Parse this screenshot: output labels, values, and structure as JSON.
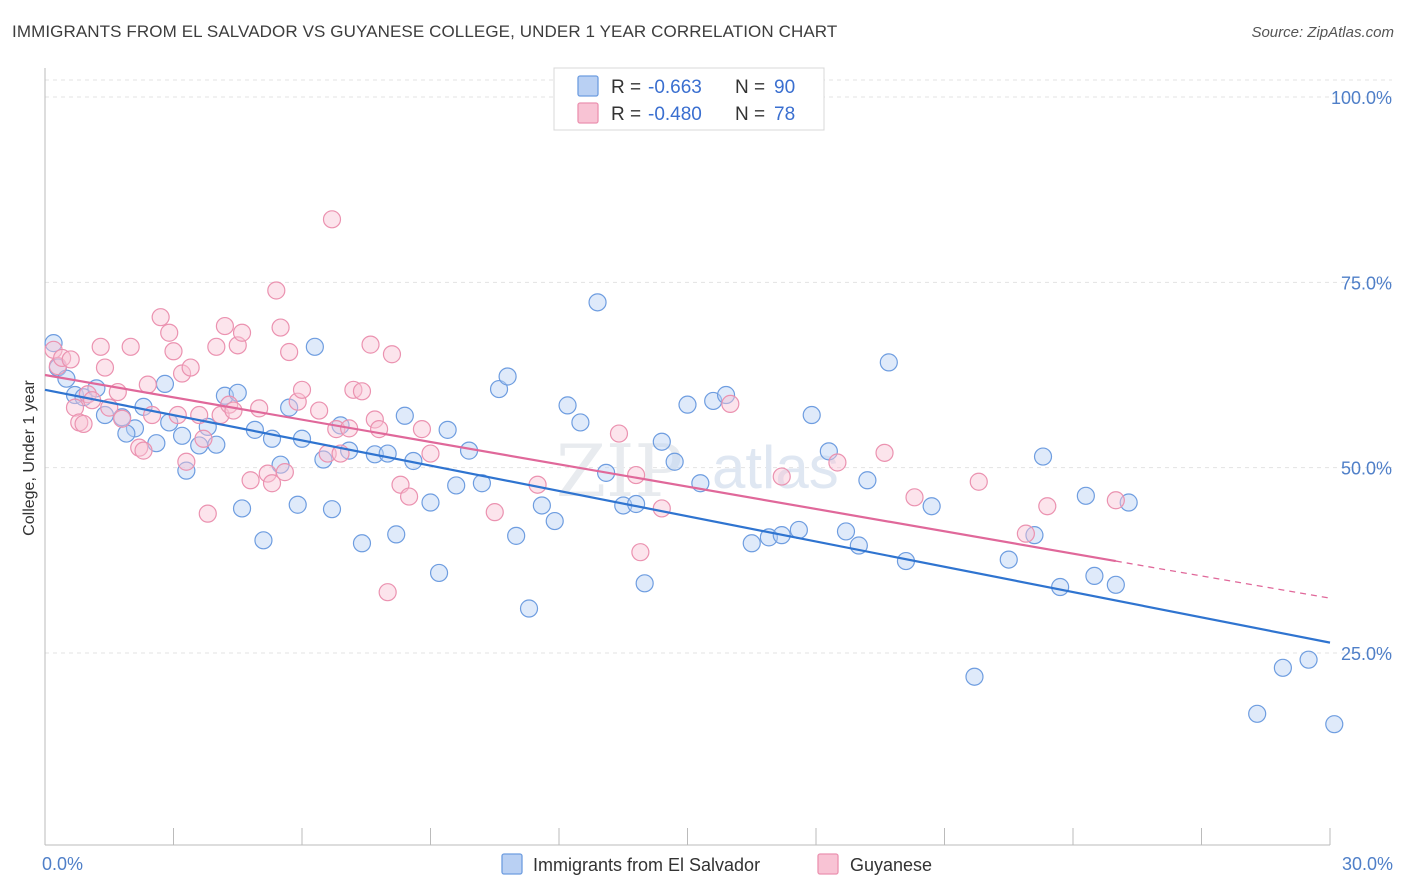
{
  "title": "IMMIGRANTS FROM EL SALVADOR VS GUYANESE COLLEGE, UNDER 1 YEAR CORRELATION CHART",
  "source": "Source: ZipAtlas.com",
  "watermark": {
    "zip": "ZIP",
    "atlas": "atlas"
  },
  "chart_data": {
    "type": "scatter",
    "xlabel": "",
    "ylabel": "College, Under 1 year",
    "xlim": [
      0,
      30
    ],
    "ylim": [
      0,
      105
    ],
    "x_tick_labels": [
      "0.0%",
      "30.0%"
    ],
    "y_ticks": [
      25,
      50,
      75,
      100
    ],
    "y_tick_labels": [
      "25.0%",
      "50.0%",
      "75.0%",
      "100.0%"
    ],
    "legend_stats": [
      {
        "r_label": "R =",
        "r": "-0.663",
        "n_label": "N =",
        "n": "90"
      },
      {
        "r_label": "R =",
        "r": "-0.480",
        "n_label": "N =",
        "n": "78"
      }
    ],
    "series": [
      {
        "name": "Immigrants from El Salvador",
        "color": "#6e9de0",
        "fill": "#b9d0f3",
        "trend": {
          "x": [
            0,
            30
          ],
          "y": [
            60.5,
            26.4
          ],
          "color": "#2f74d0"
        },
        "points": [
          [
            0.2,
            66.8
          ],
          [
            0.3,
            63.5
          ],
          [
            0.5,
            62.0
          ],
          [
            0.7,
            59.8
          ],
          [
            0.9,
            59.5
          ],
          [
            1.2,
            60.7
          ],
          [
            1.4,
            57.1
          ],
          [
            1.8,
            56.8
          ],
          [
            2.1,
            55.3
          ],
          [
            1.9,
            54.6
          ],
          [
            2.3,
            58.2
          ],
          [
            2.6,
            53.3
          ],
          [
            2.8,
            61.3
          ],
          [
            2.9,
            56.1
          ],
          [
            3.2,
            54.3
          ],
          [
            3.3,
            49.6
          ],
          [
            3.6,
            53.0
          ],
          [
            3.8,
            55.5
          ],
          [
            4.0,
            53.1
          ],
          [
            4.2,
            59.7
          ],
          [
            4.5,
            60.1
          ],
          [
            4.6,
            44.5
          ],
          [
            4.9,
            55.1
          ],
          [
            5.1,
            40.2
          ],
          [
            5.3,
            53.9
          ],
          [
            5.5,
            50.4
          ],
          [
            5.7,
            58.1
          ],
          [
            5.9,
            45.0
          ],
          [
            6.0,
            53.9
          ],
          [
            6.3,
            66.3
          ],
          [
            6.5,
            51.1
          ],
          [
            6.7,
            44.4
          ],
          [
            6.9,
            55.7
          ],
          [
            7.1,
            52.3
          ],
          [
            7.4,
            39.8
          ],
          [
            7.7,
            51.8
          ],
          [
            8.0,
            51.9
          ],
          [
            8.2,
            41.0
          ],
          [
            8.4,
            57.0
          ],
          [
            8.6,
            50.9
          ],
          [
            9.0,
            45.3
          ],
          [
            9.2,
            35.8
          ],
          [
            9.4,
            55.1
          ],
          [
            9.6,
            47.6
          ],
          [
            9.9,
            52.3
          ],
          [
            10.2,
            47.9
          ],
          [
            10.6,
            60.6
          ],
          [
            10.8,
            62.3
          ],
          [
            11.0,
            40.8
          ],
          [
            11.3,
            31.0
          ],
          [
            11.6,
            44.9
          ],
          [
            11.9,
            42.8
          ],
          [
            12.2,
            58.4
          ],
          [
            12.5,
            56.1
          ],
          [
            12.9,
            72.3
          ],
          [
            13.1,
            49.3
          ],
          [
            13.5,
            44.9
          ],
          [
            13.8,
            45.1
          ],
          [
            14.0,
            34.4
          ],
          [
            14.4,
            53.5
          ],
          [
            14.7,
            50.8
          ],
          [
            15.0,
            58.5
          ],
          [
            15.3,
            47.9
          ],
          [
            15.6,
            59.0
          ],
          [
            15.9,
            59.8
          ],
          [
            16.5,
            39.8
          ],
          [
            16.9,
            40.6
          ],
          [
            17.2,
            40.9
          ],
          [
            17.6,
            41.6
          ],
          [
            17.9,
            57.1
          ],
          [
            18.3,
            52.2
          ],
          [
            18.7,
            41.4
          ],
          [
            19.0,
            39.5
          ],
          [
            19.2,
            48.3
          ],
          [
            19.7,
            64.2
          ],
          [
            20.1,
            37.4
          ],
          [
            20.7,
            44.8
          ],
          [
            21.7,
            21.8
          ],
          [
            22.5,
            37.6
          ],
          [
            23.1,
            40.9
          ],
          [
            23.3,
            51.5
          ],
          [
            23.7,
            33.9
          ],
          [
            24.3,
            46.2
          ],
          [
            24.5,
            35.4
          ],
          [
            25.0,
            34.2
          ],
          [
            25.3,
            45.3
          ],
          [
            28.3,
            16.8
          ],
          [
            28.9,
            23.0
          ],
          [
            29.5,
            24.1
          ],
          [
            30.1,
            15.4
          ]
        ]
      },
      {
        "name": "Guyanese",
        "color": "#eb92b0",
        "fill": "#f8c3d4",
        "trend": {
          "x": [
            0,
            25
          ],
          "y": [
            62.5,
            37.4
          ],
          "color": "#e0689a",
          "dash_to": [
            30,
            32.4
          ]
        },
        "points": [
          [
            0.2,
            65.9
          ],
          [
            0.3,
            63.7
          ],
          [
            0.4,
            64.8
          ],
          [
            0.6,
            64.6
          ],
          [
            0.7,
            58.1
          ],
          [
            0.8,
            56.1
          ],
          [
            0.9,
            55.9
          ],
          [
            1.0,
            59.9
          ],
          [
            1.1,
            59.1
          ],
          [
            1.3,
            66.3
          ],
          [
            1.4,
            63.5
          ],
          [
            1.5,
            58.1
          ],
          [
            1.7,
            60.2
          ],
          [
            1.8,
            56.6
          ],
          [
            2.0,
            66.3
          ],
          [
            2.2,
            52.7
          ],
          [
            2.3,
            52.3
          ],
          [
            2.4,
            61.2
          ],
          [
            2.5,
            57.1
          ],
          [
            2.7,
            70.3
          ],
          [
            2.9,
            68.2
          ],
          [
            3.0,
            65.7
          ],
          [
            3.1,
            57.1
          ],
          [
            3.2,
            62.7
          ],
          [
            3.3,
            50.8
          ],
          [
            3.4,
            63.5
          ],
          [
            3.6,
            57.1
          ],
          [
            3.7,
            53.9
          ],
          [
            3.8,
            43.8
          ],
          [
            4.0,
            66.3
          ],
          [
            4.1,
            57.1
          ],
          [
            4.2,
            69.1
          ],
          [
            4.3,
            58.5
          ],
          [
            4.4,
            57.7
          ],
          [
            4.5,
            66.5
          ],
          [
            4.6,
            68.2
          ],
          [
            4.8,
            48.3
          ],
          [
            5.0,
            58.0
          ],
          [
            5.2,
            49.2
          ],
          [
            5.3,
            47.9
          ],
          [
            5.4,
            73.9
          ],
          [
            5.5,
            68.9
          ],
          [
            5.6,
            49.4
          ],
          [
            5.7,
            65.6
          ],
          [
            5.9,
            58.9
          ],
          [
            6.0,
            60.5
          ],
          [
            6.4,
            57.7
          ],
          [
            6.6,
            51.9
          ],
          [
            6.7,
            83.5
          ],
          [
            6.8,
            55.2
          ],
          [
            6.9,
            51.9
          ],
          [
            7.1,
            55.3
          ],
          [
            7.2,
            60.5
          ],
          [
            7.4,
            60.3
          ],
          [
            7.6,
            66.6
          ],
          [
            7.7,
            56.5
          ],
          [
            7.8,
            55.2
          ],
          [
            8.0,
            33.2
          ],
          [
            8.1,
            65.3
          ],
          [
            8.3,
            47.7
          ],
          [
            8.5,
            46.1
          ],
          [
            8.8,
            55.2
          ],
          [
            9.0,
            51.9
          ],
          [
            10.5,
            44.0
          ],
          [
            11.5,
            47.7
          ],
          [
            13.4,
            54.6
          ],
          [
            13.8,
            49.0
          ],
          [
            13.9,
            38.6
          ],
          [
            14.4,
            44.5
          ],
          [
            16.0,
            58.6
          ],
          [
            17.2,
            48.8
          ],
          [
            18.5,
            50.7
          ],
          [
            19.6,
            52.0
          ],
          [
            20.3,
            46.0
          ],
          [
            21.8,
            48.1
          ],
          [
            22.9,
            41.1
          ],
          [
            23.4,
            44.8
          ],
          [
            25.0,
            45.6
          ]
        ]
      }
    ]
  }
}
